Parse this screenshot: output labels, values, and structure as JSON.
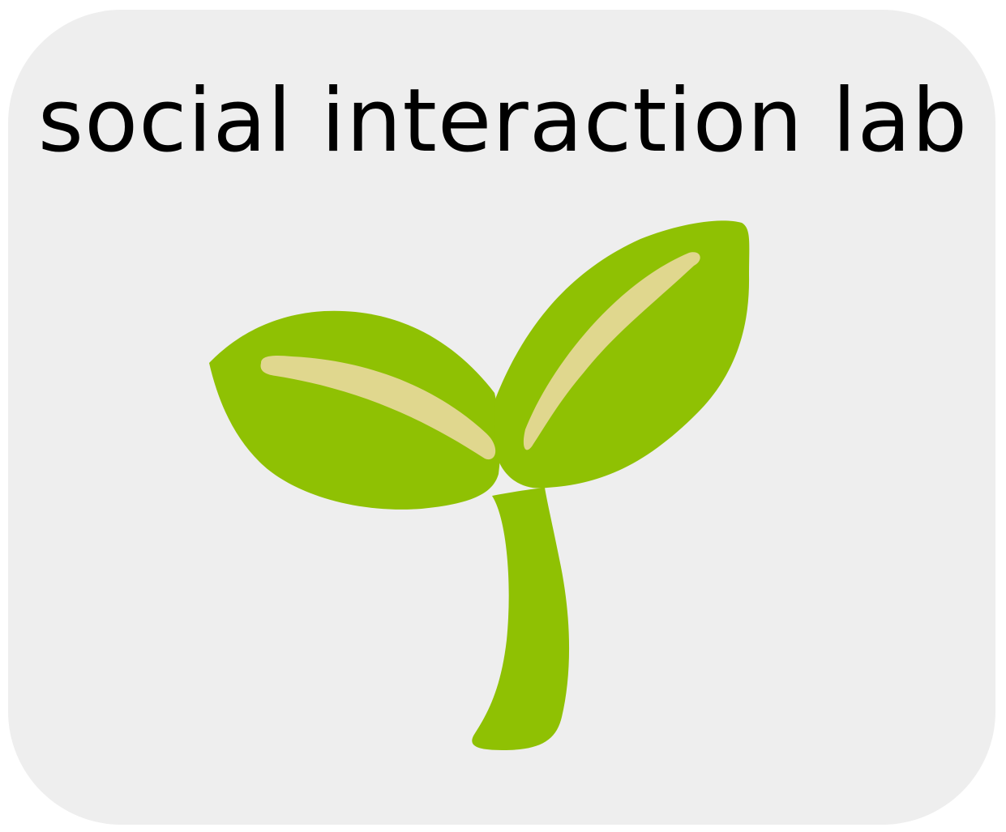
{
  "logo": {
    "title": "social interaction lab",
    "icon": "sprout-icon",
    "colors": {
      "card_background": "#eeeeee",
      "text": "#000000",
      "leaf": "#8fc103",
      "leaf_vein": "#e0d78e"
    }
  }
}
